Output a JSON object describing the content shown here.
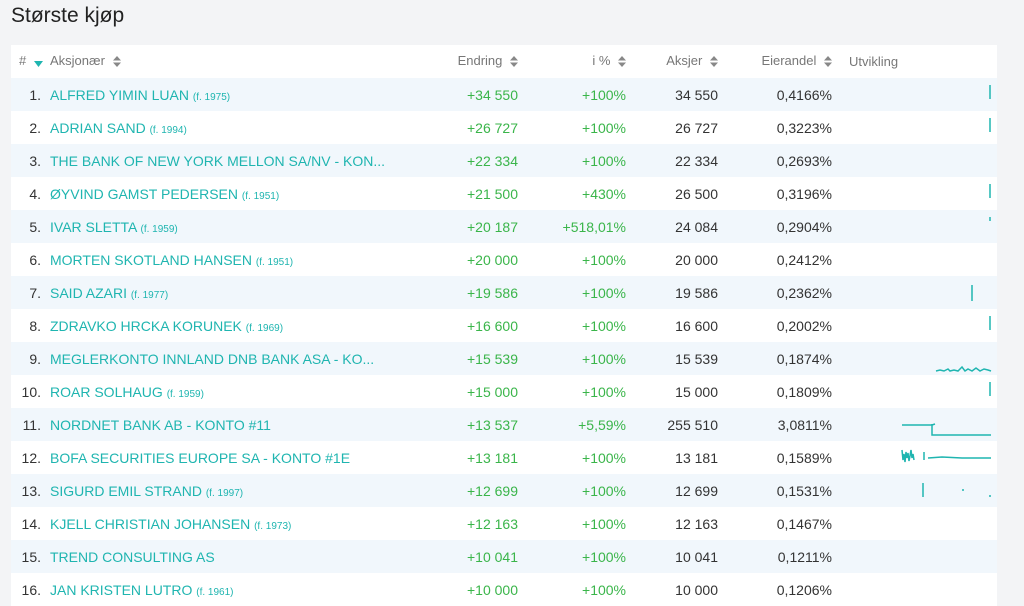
{
  "page": {
    "title": "Største kjøp"
  },
  "table": {
    "headers": {
      "rank": "#",
      "name": "Aksjonær",
      "change": "Endring",
      "pct": "i %",
      "shares": "Aksjer",
      "ownership": "Eierandel",
      "trend": "Utvikling"
    },
    "rows": [
      {
        "rank": "1.",
        "name": "ALFRED YIMIN LUAN",
        "birth": "(f. 1975)",
        "change": "+34 550",
        "pct": "+100%",
        "shares": "34 550",
        "ownership": "0,4166%",
        "spark": "bar-right"
      },
      {
        "rank": "2.",
        "name": "ADRIAN SAND",
        "birth": "(f. 1994)",
        "change": "+26 727",
        "pct": "+100%",
        "shares": "26 727",
        "ownership": "0,3223%",
        "spark": "bar-right"
      },
      {
        "rank": "3.",
        "name": "THE BANK OF NEW YORK MELLON SA/NV - KON...",
        "birth": "",
        "change": "+22 334",
        "pct": "+100%",
        "shares": "22 334",
        "ownership": "0,2693%",
        "spark": "none"
      },
      {
        "rank": "4.",
        "name": "ØYVIND GAMST PEDERSEN",
        "birth": "(f. 1951)",
        "change": "+21 500",
        "pct": "+430%",
        "shares": "26 500",
        "ownership": "0,3196%",
        "spark": "bar-right"
      },
      {
        "rank": "5.",
        "name": "IVAR SLETTA",
        "birth": "(f. 1959)",
        "change": "+20 187",
        "pct": "+518,01%",
        "shares": "24 084",
        "ownership": "0,2904%",
        "spark": "dot-right"
      },
      {
        "rank": "6.",
        "name": "MORTEN SKOTLAND HANSEN",
        "birth": "(f. 1951)",
        "change": "+20 000",
        "pct": "+100%",
        "shares": "20 000",
        "ownership": "0,2412%",
        "spark": "none"
      },
      {
        "rank": "7.",
        "name": "SAID AZARI",
        "birth": "(f. 1977)",
        "change": "+19 586",
        "pct": "+100%",
        "shares": "19 586",
        "ownership": "0,2362%",
        "spark": "bar-mid"
      },
      {
        "rank": "8.",
        "name": "ZDRAVKO HRCKA KORUNEK",
        "birth": "(f. 1969)",
        "change": "+16 600",
        "pct": "+100%",
        "shares": "16 600",
        "ownership": "0,2002%",
        "spark": "bar-right"
      },
      {
        "rank": "9.",
        "name": "MEGLERKONTO INNLAND DNB BANK ASA - KO...",
        "birth": "",
        "change": "+15 539",
        "pct": "+100%",
        "shares": "15 539",
        "ownership": "0,1874%",
        "spark": "noise-low"
      },
      {
        "rank": "10.",
        "name": "ROAR SOLHAUG",
        "birth": "(f. 1959)",
        "change": "+15 000",
        "pct": "+100%",
        "shares": "15 000",
        "ownership": "0,1809%",
        "spark": "bar-right"
      },
      {
        "rank": "11.",
        "name": "NORDNET BANK AB - KONTO #11",
        "birth": "",
        "change": "+13 537",
        "pct": "+5,59%",
        "shares": "255 510",
        "ownership": "3,0811%",
        "spark": "step"
      },
      {
        "rank": "12.",
        "name": "BOFA SECURITIES EUROPE SA - KONTO #1E",
        "birth": "",
        "change": "+13 181",
        "pct": "+100%",
        "shares": "13 181",
        "ownership": "0,1589%",
        "spark": "noise-left"
      },
      {
        "rank": "13.",
        "name": "SIGURD EMIL STRAND",
        "birth": "(f. 1997)",
        "change": "+12 699",
        "pct": "+100%",
        "shares": "12 699",
        "ownership": "0,1531%",
        "spark": "bar-left-dot"
      },
      {
        "rank": "14.",
        "name": "KJELL CHRISTIAN JOHANSEN",
        "birth": "(f. 1973)",
        "change": "+12 163",
        "pct": "+100%",
        "shares": "12 163",
        "ownership": "0,1467%",
        "spark": "none"
      },
      {
        "rank": "15.",
        "name": "TREND CONSULTING AS",
        "birth": "",
        "change": "+10 041",
        "pct": "+100%",
        "shares": "10 041",
        "ownership": "0,1211%",
        "spark": "none"
      },
      {
        "rank": "16.",
        "name": "JAN KRISTEN LUTRO",
        "birth": "(f. 1961)",
        "change": "+10 000",
        "pct": "+100%",
        "shares": "10 000",
        "ownership": "0,1206%",
        "spark": "none"
      }
    ]
  },
  "colors": {
    "accent": "#1fb5b0",
    "positive": "#3ab54a",
    "stripe": "#f1f7fc"
  },
  "icons": {
    "sort": "sort-updown-icon",
    "sort_active": "sort-down-icon"
  }
}
